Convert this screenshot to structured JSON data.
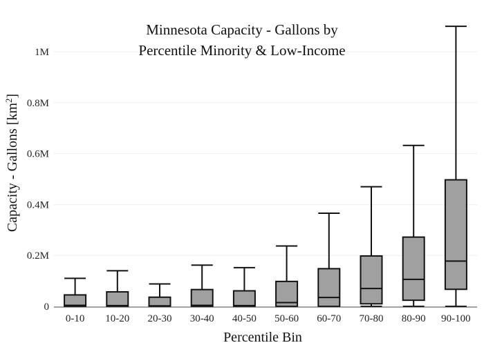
{
  "chart_data": {
    "type": "box",
    "title_lines": [
      "Minnesota Capacity - Gallons by",
      "Percentile Minority & Low-Income"
    ],
    "xlabel": "Percentile Bin",
    "ylabel_main": "Capacity - Gallons  [km",
    "ylabel_sup": "2",
    "ylabel_end": "]",
    "ylim": [
      0,
      1100000
    ],
    "yticks": [
      {
        "value": 0,
        "label": "0"
      },
      {
        "value": 200000,
        "label": "0.2M"
      },
      {
        "value": 400000,
        "label": "0.4M"
      },
      {
        "value": 600000,
        "label": "0.6M"
      },
      {
        "value": 800000,
        "label": "0.8M"
      },
      {
        "value": 1000000,
        "label": "1M"
      }
    ],
    "grid": true,
    "categories": [
      "0-10",
      "10-20",
      "20-30",
      "30-40",
      "40-50",
      "50-60",
      "60-70",
      "70-80",
      "80-90",
      "90-100"
    ],
    "boxes": [
      {
        "min": 0,
        "q1": 0,
        "median": 4000,
        "q3": 45000,
        "max": 110000
      },
      {
        "min": 0,
        "q1": 0,
        "median": 3000,
        "q3": 57000,
        "max": 140000
      },
      {
        "min": 0,
        "q1": 0,
        "median": 2000,
        "q3": 36000,
        "max": 88000
      },
      {
        "min": 0,
        "q1": 0,
        "median": 4000,
        "q3": 66000,
        "max": 162000
      },
      {
        "min": 0,
        "q1": 0,
        "median": 3000,
        "q3": 61000,
        "max": 152000
      },
      {
        "min": 0,
        "q1": 0,
        "median": 15000,
        "q3": 98000,
        "max": 237000
      },
      {
        "min": 0,
        "q1": 0,
        "median": 35000,
        "q3": 148000,
        "max": 366000
      },
      {
        "min": 0,
        "q1": 10000,
        "median": 70000,
        "q3": 198000,
        "max": 470000
      },
      {
        "min": 0,
        "q1": 24000,
        "median": 106000,
        "q3": 272000,
        "max": 632000
      },
      {
        "min": 0,
        "q1": 67000,
        "median": 178000,
        "q3": 497000,
        "max": 1100000
      }
    ],
    "colors": {
      "box_fill": "#a0a0a0",
      "stroke": "#111111",
      "grid": "#eeeeee"
    }
  }
}
